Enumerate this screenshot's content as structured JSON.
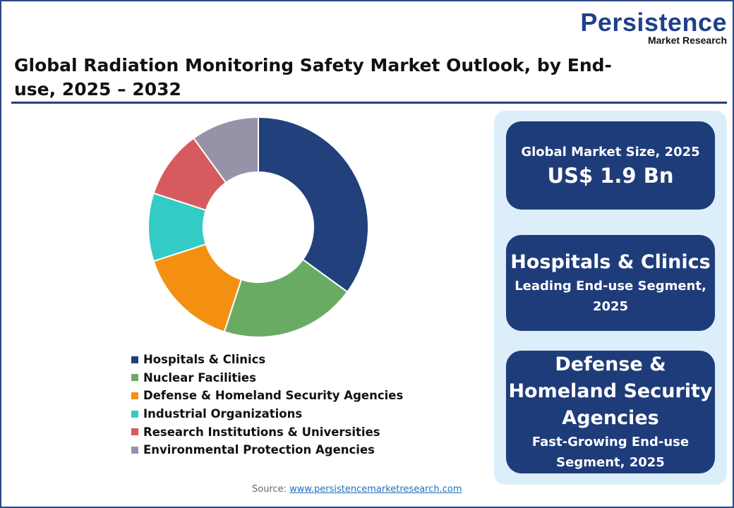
{
  "brand": {
    "name": "Persistence",
    "subname": "Market Research"
  },
  "title": "Global Radiation Monitoring Safety Market Outlook, by End-use, 2025 – 2032",
  "chart_data": {
    "type": "pie",
    "donut": true,
    "title": "Global Radiation Monitoring Safety Market Outlook, by End-use, 2025 – 2032",
    "categories": [
      "Hospitals & Clinics",
      "Nuclear Facilities",
      "Defense & Homeland Security Agencies",
      "Industrial Organizations",
      "Research Institutions & Universities",
      "Environmental Protection Agencies"
    ],
    "values": [
      35,
      20,
      15,
      10,
      10,
      10
    ],
    "unit": "% share (estimated)",
    "colors": [
      "#22407c",
      "#6aab64",
      "#f39012",
      "#33cbc6",
      "#d65b5e",
      "#9892a8"
    ],
    "legend_position": "bottom"
  },
  "cards": [
    {
      "label": "Global Market Size, 2025",
      "value": "US$ 1.9 Bn"
    },
    {
      "headline": "Hospitals & Clinics",
      "sub1": "Leading End-use Segment,",
      "sub2": "2025"
    },
    {
      "headline1": "Defense &",
      "headline2": "Homeland Security",
      "headline3": "Agencies",
      "sub1": "Fast-Growing End-use",
      "sub2": "Segment, 2025"
    }
  ],
  "source": {
    "label": "Source:",
    "link": "www.persistencemarketresearch.com"
  }
}
